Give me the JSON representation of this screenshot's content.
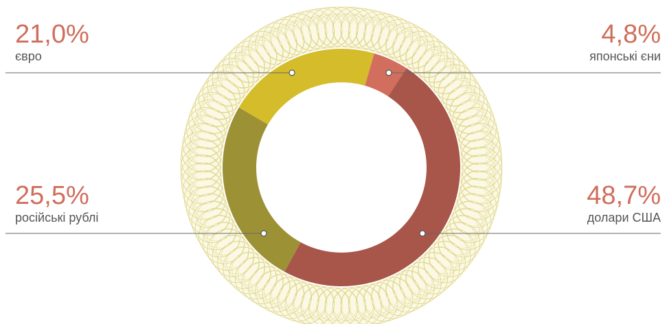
{
  "chart_data": {
    "type": "donut",
    "categories": [
      "японські єни",
      "долари США",
      "російські рублі",
      "євро"
    ],
    "values": [
      4.8,
      48.7,
      25.5,
      21.0
    ],
    "value_labels": [
      "4,8%",
      "48,7%",
      "25,5%",
      "21,0%"
    ],
    "colors": [
      "#d26e5d",
      "#a8554a",
      "#9d9136",
      "#d5bc2a"
    ]
  }
}
